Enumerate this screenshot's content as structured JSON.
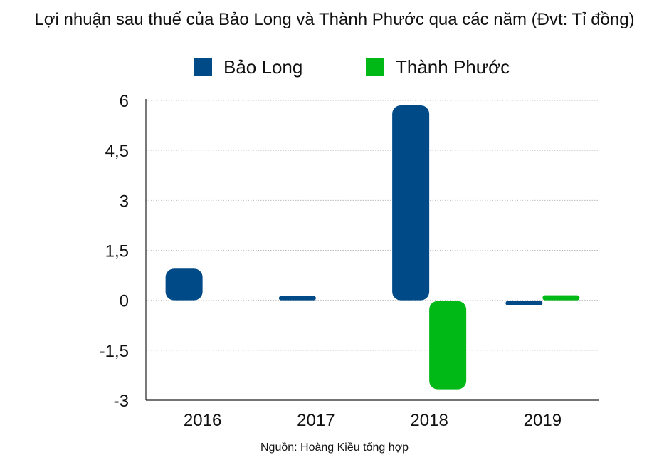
{
  "chart_data": {
    "type": "bar",
    "title": "Lợi nhuận sau thuế của Bảo Long và Thành Phước qua các năm (Đvt: Tỉ đồng)",
    "categories": [
      "2016",
      "2017",
      "2018",
      "2019"
    ],
    "series": [
      {
        "name": "Bảo Long",
        "color": "#004a87",
        "values": [
          0.95,
          0.12,
          5.85,
          -0.13
        ]
      },
      {
        "name": "Thành Phước",
        "color": "#00b816",
        "values": [
          null,
          null,
          -2.65,
          0.15
        ]
      }
    ],
    "yticks": [
      6,
      4.5,
      3,
      1.5,
      0,
      -1.5,
      -3
    ],
    "ytick_labels": [
      "6",
      "4,5",
      "3",
      "1,5",
      "0",
      "-1,5",
      "-3"
    ],
    "ylim": [
      -3,
      6
    ],
    "grid": true,
    "legend_position": "top-center",
    "source": "Nguồn: Hoàng Kiều tổng hợp"
  }
}
